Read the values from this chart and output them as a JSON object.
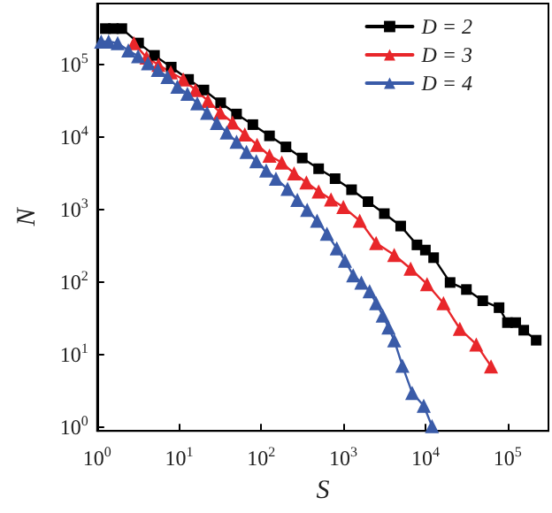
{
  "chart_data": {
    "type": "line",
    "xlabel": "S",
    "ylabel": "N",
    "log": "xy",
    "grid": false,
    "legend": "top right",
    "xlim": [
      1,
      316000
    ],
    "ylim": [
      0.9,
      700000
    ],
    "xticks": [
      {
        "value": 1,
        "label": "10$^{0}$"
      },
      {
        "value": 10,
        "label": "10$^{1}$"
      },
      {
        "value": 100,
        "label": "10$^{2}$"
      },
      {
        "value": 1000,
        "label": "10$^{3}$"
      },
      {
        "value": 10000,
        "label": "10$^{4}$"
      },
      {
        "value": 100000,
        "label": "10$^{5}$"
      }
    ],
    "yticks": [
      {
        "value": 1,
        "label": "10$^{0}$"
      },
      {
        "value": 10,
        "label": "10$^{1}$"
      },
      {
        "value": 100,
        "label": "10$^{2}$"
      },
      {
        "value": 1000,
        "label": "10$^{3}$"
      },
      {
        "value": 10000,
        "label": "10$^{4}$"
      },
      {
        "value": 100000,
        "label": "10$^{5}$"
      }
    ],
    "series": [
      {
        "name": "D = 2",
        "color": "#000000",
        "marker": "square",
        "x": [
          1.26,
          1.58,
          2,
          3.2,
          5,
          8,
          13,
          20,
          32,
          50,
          79,
          126,
          200,
          316,
          500,
          794,
          1260,
          2000,
          3160,
          5000,
          7900,
          10000,
          12600,
          20000,
          31600,
          50000,
          79000,
          100000,
          126000,
          158000,
          224000
        ],
        "values": [
          316000,
          316000,
          316000,
          200000,
          135000,
          93000,
          63000,
          45000,
          30000,
          21000,
          15000,
          10500,
          7400,
          5200,
          3700,
          2700,
          1900,
          1300,
          890,
          600,
          330,
          280,
          220,
          100,
          80,
          56,
          45,
          28,
          28,
          22,
          16
        ]
      },
      {
        "name": "D = 3",
        "color": "#e8262a",
        "marker": "triangle",
        "x": [
          2.8,
          4,
          5.6,
          7.9,
          11.2,
          15.8,
          22.4,
          31.6,
          44.7,
          63,
          89,
          126,
          178,
          251,
          355,
          501,
          708,
          1000,
          1585,
          2512,
          4169,
          6607,
          10470,
          16600,
          26300,
          41700,
          63100
        ],
        "values": [
          200000,
          126000,
          100000,
          79000,
          63000,
          45000,
          32000,
          22000,
          16000,
          11000,
          7900,
          5600,
          4500,
          3200,
          2400,
          1800,
          1400,
          1100,
          710,
          350,
          240,
          155,
          95,
          52,
          23,
          14,
          7
        ]
      },
      {
        "name": "D = 4",
        "color": "#3a5ba8",
        "marker": "triangle",
        "x": [
          1.12,
          1.38,
          1.78,
          2.4,
          3.16,
          4.17,
          5.5,
          7.2,
          9.5,
          12.6,
          16.6,
          21.9,
          28.8,
          38,
          50,
          66,
          87,
          115,
          151,
          209,
          275,
          363,
          479,
          631,
          832,
          1047,
          1318,
          1660,
          2089,
          2512,
          3020,
          3548,
          4169,
          5248,
          6918,
          9550,
          12020
        ],
        "values": [
          209000,
          209000,
          200000,
          158000,
          132000,
          105000,
          85000,
          68000,
          50000,
          40000,
          29500,
          21900,
          15800,
          11700,
          8700,
          6300,
          4700,
          3500,
          2700,
          1950,
          1380,
          1000,
          710,
          470,
          295,
          200,
          126,
          100,
          76,
          52,
          35,
          24,
          16,
          7.1,
          3,
          2,
          1.05
        ]
      }
    ]
  }
}
